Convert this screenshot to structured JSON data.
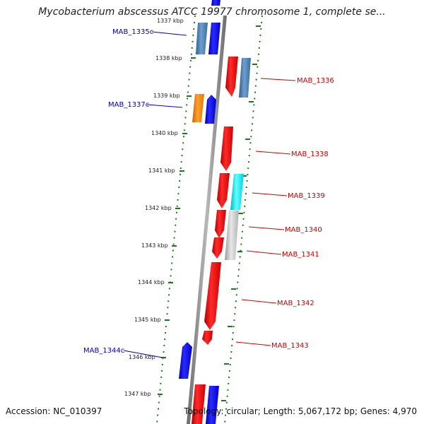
{
  "title": "Mycobacterium abscessus ATCC 19977 chromosome 1, complete se...",
  "footer": {
    "accession": "Accession: NC_010397",
    "summary": "Topology: circular; Length: 5,067,172 bp; Genes: 4,970"
  },
  "ticks": [
    "1337 kbp",
    "1338 kbp",
    "1339 kbp",
    "1340 kbp",
    "1341 kbp",
    "1342 kbp",
    "1343 kbp",
    "1344 kbp",
    "1345 kbp",
    "1346 kbp",
    "1347 kbp"
  ],
  "genes": [
    {
      "name": "MAB_1335c",
      "strand": "minus",
      "color": "#0000cc"
    },
    {
      "name": "MAB_1336",
      "strand": "plus",
      "color": "#cc0000"
    },
    {
      "name": "MAB_1337c",
      "strand": "minus",
      "color": "#0000cc"
    },
    {
      "name": "MAB_1338",
      "strand": "plus",
      "color": "#cc0000"
    },
    {
      "name": "MAB_1339",
      "strand": "plus",
      "color": "#cc0000"
    },
    {
      "name": "MAB_1340",
      "strand": "plus",
      "color": "#cc0000"
    },
    {
      "name": "MAB_1341",
      "strand": "plus",
      "color": "#cc0000"
    },
    {
      "name": "MAB_1342",
      "strand": "plus",
      "color": "#cc0000"
    },
    {
      "name": "MAB_1343",
      "strand": "plus",
      "color": "#cc0000"
    },
    {
      "name": "MAB_1344c",
      "strand": "minus",
      "color": "#0000cc"
    }
  ],
  "colors": {
    "forward": "#ff0000",
    "reverse": "#0000ff",
    "steelblue": "#4a7fb0",
    "orange": "#ff8c00",
    "cyan": "#00e5ee",
    "grey": "#bfbfbf",
    "backbone": "#8c8c8c",
    "ruler": "#1a7a1a"
  }
}
